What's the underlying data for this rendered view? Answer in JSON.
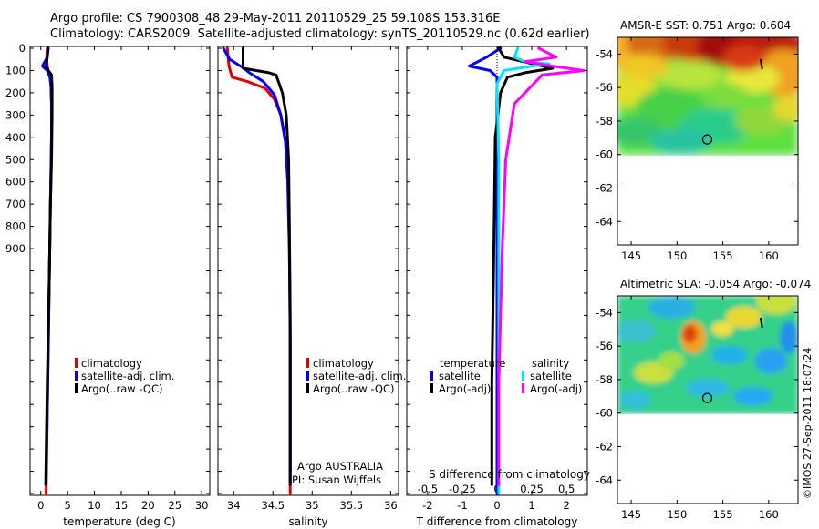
{
  "figure": {
    "title_line1": "Argo profile: CS 7900308_48 29-May-2011 20110529_25 59.108S 153.316E",
    "title_line2": "Climatology: CARS2009. Satellite-adjusted climatology: synTS_20110529.nc (0.62d earlier)",
    "credit": "©IMOS 27-Sep-2011 18:07:24",
    "argo_label": "Argo AUSTRALIA",
    "pi_label": "PI: Susan Wijffels",
    "colors": {
      "climatology": "#e00000",
      "satellite": "#0000ff",
      "argo": "#000000",
      "salinity_satellite": "#00e5ff",
      "salinity_argo": "#ff00ff"
    }
  },
  "chart_data": [
    {
      "type": "line",
      "id": "temperature",
      "xlabel": "temperature (deg C)",
      "xlim": [
        -2,
        31.5
      ],
      "ylim": [
        0,
        2000
      ],
      "y_reversed": true,
      "xticks": [
        0,
        5,
        10,
        15,
        20,
        25,
        30
      ],
      "yticks": [
        0,
        100,
        200,
        300,
        400,
        500,
        600,
        700,
        800,
        900
      ],
      "legend": [
        "climatology",
        "satellite-adj. clim.",
        "Argo(..raw -QC)"
      ],
      "series": [
        {
          "name": "climatology",
          "color": "#e00000",
          "points": [
            [
              1.2,
              0
            ],
            [
              1.1,
              40
            ],
            [
              1.2,
              80
            ],
            [
              1.4,
              100
            ],
            [
              1.7,
              130
            ],
            [
              1.9,
              170
            ],
            [
              2.0,
              250
            ],
            [
              2.0,
              400
            ],
            [
              1.8,
              700
            ],
            [
              1.6,
              1000
            ],
            [
              1.3,
              1500
            ],
            [
              1.0,
              2000
            ]
          ]
        },
        {
          "name": "satellite-adj. clim.",
          "color": "#0000ff",
          "points": [
            [
              1.4,
              0
            ],
            [
              1.2,
              40
            ],
            [
              0.3,
              80
            ],
            [
              1.2,
              100
            ],
            [
              1.7,
              130
            ],
            [
              1.9,
              170
            ],
            [
              2.0,
              250
            ],
            [
              2.0,
              400
            ],
            [
              1.8,
              700
            ],
            [
              1.6,
              1000
            ],
            [
              1.3,
              1500
            ],
            [
              1.0,
              1950
            ]
          ]
        },
        {
          "name": "Argo(..raw -QC)",
          "color": "#000000",
          "points": [
            [
              1.3,
              0
            ],
            [
              1.2,
              40
            ],
            [
              1.0,
              80
            ],
            [
              1.4,
              100
            ],
            [
              2.0,
              120
            ],
            [
              2.1,
              180
            ],
            [
              2.1,
              300
            ],
            [
              2.0,
              500
            ],
            [
              1.8,
              700
            ],
            [
              1.6,
              1000
            ],
            [
              1.2,
              1500
            ],
            [
              0.9,
              1960
            ]
          ]
        }
      ]
    },
    {
      "type": "line",
      "id": "salinity",
      "xlabel": "salinity",
      "xlim": [
        33.8,
        36.1
      ],
      "ylim": [
        0,
        2000
      ],
      "y_reversed": true,
      "xticks": [
        34,
        34.5,
        35,
        35.5,
        36
      ],
      "legend": [
        "climatology",
        "satellite-adj. clim.",
        "Argo(..raw -QC)"
      ],
      "series": [
        {
          "name": "climatology",
          "color": "#e00000",
          "points": [
            [
              33.92,
              0
            ],
            [
              33.94,
              80
            ],
            [
              33.98,
              130
            ],
            [
              34.18,
              150
            ],
            [
              34.4,
              180
            ],
            [
              34.52,
              230
            ],
            [
              34.6,
              300
            ],
            [
              34.66,
              420
            ],
            [
              34.69,
              600
            ],
            [
              34.71,
              900
            ],
            [
              34.72,
              1300
            ],
            [
              34.72,
              2000
            ]
          ]
        },
        {
          "name": "satellite-adj. clim.",
          "color": "#0000ff",
          "points": [
            [
              33.87,
              0
            ],
            [
              33.95,
              50
            ],
            [
              34.13,
              90
            ],
            [
              34.2,
              110
            ],
            [
              34.38,
              150
            ],
            [
              34.52,
              210
            ],
            [
              34.6,
              300
            ],
            [
              34.66,
              420
            ],
            [
              34.69,
              600
            ],
            [
              34.71,
              900
            ],
            [
              34.72,
              1300
            ],
            [
              34.72,
              1950
            ]
          ]
        },
        {
          "name": "Argo(..raw -QC)",
          "color": "#000000",
          "points": [
            [
              34.12,
              0
            ],
            [
              34.12,
              40
            ],
            [
              34.12,
              90
            ],
            [
              34.45,
              110
            ],
            [
              34.54,
              120
            ],
            [
              34.62,
              200
            ],
            [
              34.67,
              300
            ],
            [
              34.7,
              500
            ],
            [
              34.71,
              800
            ],
            [
              34.72,
              1200
            ],
            [
              34.72,
              1960
            ]
          ]
        }
      ]
    },
    {
      "type": "line",
      "id": "difference",
      "xlabel": "T difference from climatology",
      "xlabel_top": "S difference from climatology",
      "xlim": [
        -2.6,
        2.6
      ],
      "ylim": [
        0,
        2000
      ],
      "y_reversed": true,
      "xticks": [
        -2,
        -1,
        0,
        1,
        2
      ],
      "xticks_top": [
        -0.5,
        -0.25,
        0,
        0.25,
        0.5
      ],
      "legend_groups": {
        "temperature": [
          "satellite",
          "Argo(-adj)"
        ],
        "salinity": [
          "satellite",
          "Argo(-adj)"
        ]
      },
      "series": [
        {
          "name": "temperature satellite",
          "color": "#0000ff",
          "points": [
            [
              0.1,
              0
            ],
            [
              -0.3,
              40
            ],
            [
              -0.8,
              80
            ],
            [
              -0.2,
              100
            ],
            [
              0,
              130
            ],
            [
              0,
              300
            ],
            [
              0,
              2000
            ]
          ]
        },
        {
          "name": "temperature Argo(-adj)",
          "color": "#000000",
          "points": [
            [
              0.05,
              0
            ],
            [
              0.2,
              40
            ],
            [
              1.6,
              90
            ],
            [
              0.8,
              110
            ],
            [
              0.3,
              130
            ],
            [
              0.1,
              200
            ],
            [
              -0.05,
              400
            ],
            [
              -0.1,
              1000
            ],
            [
              -0.15,
              1500
            ],
            [
              -0.15,
              1960
            ]
          ]
        },
        {
          "name": "salinity satellite",
          "color": "#00e5ff",
          "points": [
            [
              0.6,
              0
            ],
            [
              0.5,
              40
            ],
            [
              0.8,
              60
            ],
            [
              1.5,
              70
            ],
            [
              1.0,
              80
            ],
            [
              0.2,
              100
            ],
            [
              0,
              160
            ],
            [
              0.05,
              500
            ],
            [
              0.05,
              1000
            ],
            [
              0.05,
              2000
            ]
          ]
        },
        {
          "name": "salinity Argo(-adj)",
          "color": "#ff00ff",
          "points": [
            [
              1.2,
              0
            ],
            [
              1.7,
              40
            ],
            [
              0.8,
              60
            ],
            [
              1.6,
              80
            ],
            [
              2.5,
              100
            ],
            [
              1.3,
              120
            ],
            [
              0.5,
              250
            ],
            [
              0.25,
              500
            ],
            [
              0.15,
              900
            ],
            [
              0.05,
              1500
            ],
            [
              0.05,
              1960
            ]
          ]
        }
      ]
    },
    {
      "type": "heatmap",
      "id": "amsr-sst",
      "title": "AMSR-E SST: 0.751  Argo: 0.604",
      "xlim": [
        143.5,
        163.2
      ],
      "ylim": [
        -65.4,
        -53.0
      ],
      "xticks": [
        145,
        150,
        155,
        160
      ],
      "yticks": [
        -54,
        -56,
        -58,
        -60,
        -62,
        -64
      ],
      "data_ylim": [
        -60.05,
        -53.0
      ],
      "marker": [
        153.3,
        -59.1
      ]
    },
    {
      "type": "heatmap",
      "id": "altimetric-sla",
      "title": "Altimetric SLA: -0.054  Argo: -0.074",
      "xlim": [
        143.5,
        163.2
      ],
      "ylim": [
        -65.4,
        -53.0
      ],
      "xticks": [
        145,
        150,
        155,
        160
      ],
      "yticks": [
        -54,
        -56,
        -58,
        -60,
        -62,
        -64
      ],
      "data_ylim": [
        -60.05,
        -53.0
      ],
      "marker": [
        153.3,
        -59.1
      ]
    }
  ]
}
